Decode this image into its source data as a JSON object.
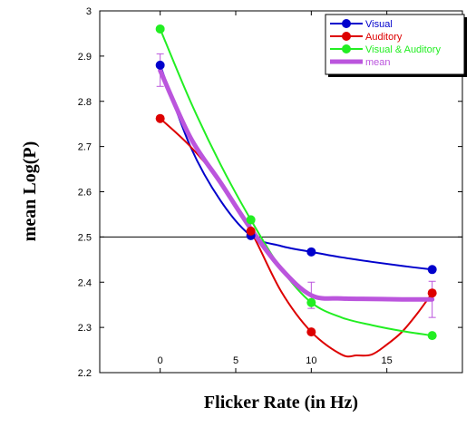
{
  "chart_data": {
    "type": "line",
    "xlabel": "Flicker Rate (in Hz)",
    "ylabel": "mean Log(P)",
    "xlim": [
      -4,
      20
    ],
    "ylim": [
      2.2,
      3.0
    ],
    "x_ticks": [
      0,
      5,
      10,
      15
    ],
    "x_tick_labels": [
      "0",
      "5",
      "10",
      "15"
    ],
    "y_ticks": [
      2.2,
      2.3,
      2.4,
      2.5,
      2.6,
      2.7,
      2.8,
      2.9,
      3.0
    ],
    "y_tick_labels": [
      "2.2",
      "2.3",
      "2.4",
      "2.5",
      "2.6",
      "2.7",
      "2.8",
      "2.9",
      "3"
    ],
    "reference_line_y": 2.5,
    "legend_position": "top-right",
    "series": [
      {
        "name": "Visual",
        "color": "#0000cc",
        "points": [
          [
            0,
            2.88
          ],
          [
            6,
            2.503
          ],
          [
            10,
            2.467
          ],
          [
            18,
            2.428
          ]
        ],
        "curve": [
          [
            0,
            2.88
          ],
          [
            2,
            2.7
          ],
          [
            4,
            2.58
          ],
          [
            6,
            2.503
          ],
          [
            8,
            2.48
          ],
          [
            10,
            2.467
          ],
          [
            12,
            2.455
          ],
          [
            14,
            2.445
          ],
          [
            16,
            2.436
          ],
          [
            18,
            2.428
          ]
        ]
      },
      {
        "name": "Auditory",
        "color": "#dd0000",
        "points": [
          [
            0,
            2.762
          ],
          [
            6,
            2.513
          ],
          [
            10,
            2.29
          ],
          [
            18,
            2.376
          ]
        ],
        "curve": [
          [
            0,
            2.762
          ],
          [
            2,
            2.7
          ],
          [
            4,
            2.62
          ],
          [
            6,
            2.513
          ],
          [
            8,
            2.38
          ],
          [
            10,
            2.29
          ],
          [
            12,
            2.24
          ],
          [
            13,
            2.238
          ],
          [
            14,
            2.24
          ],
          [
            15,
            2.262
          ],
          [
            16,
            2.29
          ],
          [
            17,
            2.33
          ],
          [
            18,
            2.376
          ]
        ]
      },
      {
        "name": "Visual & Auditory",
        "color": "#22ee22",
        "points": [
          [
            0,
            2.96
          ],
          [
            6,
            2.538
          ],
          [
            10,
            2.355
          ],
          [
            18,
            2.282
          ]
        ],
        "curve": [
          [
            0,
            2.96
          ],
          [
            2,
            2.8
          ],
          [
            4,
            2.66
          ],
          [
            6,
            2.538
          ],
          [
            8,
            2.43
          ],
          [
            10,
            2.355
          ],
          [
            12,
            2.322
          ],
          [
            14,
            2.305
          ],
          [
            16,
            2.292
          ],
          [
            18,
            2.282
          ]
        ]
      },
      {
        "name": "mean",
        "color": "#bb55dd",
        "points": [
          [
            0,
            2.868
          ],
          [
            6,
            2.518
          ],
          [
            10,
            2.371
          ],
          [
            12,
            2.364
          ],
          [
            18,
            2.362
          ]
        ],
        "error_bars": [
          [
            0,
            2.833,
            2.905
          ],
          [
            6,
            2.505,
            2.531
          ],
          [
            10,
            2.342,
            2.4
          ],
          [
            18,
            2.322,
            2.402
          ]
        ],
        "curve": [
          [
            0,
            2.868
          ],
          [
            2,
            2.72
          ],
          [
            4,
            2.62
          ],
          [
            6,
            2.518
          ],
          [
            8,
            2.43
          ],
          [
            10,
            2.371
          ],
          [
            12,
            2.364
          ],
          [
            14,
            2.363
          ],
          [
            16,
            2.362
          ],
          [
            18,
            2.362
          ]
        ]
      }
    ]
  }
}
